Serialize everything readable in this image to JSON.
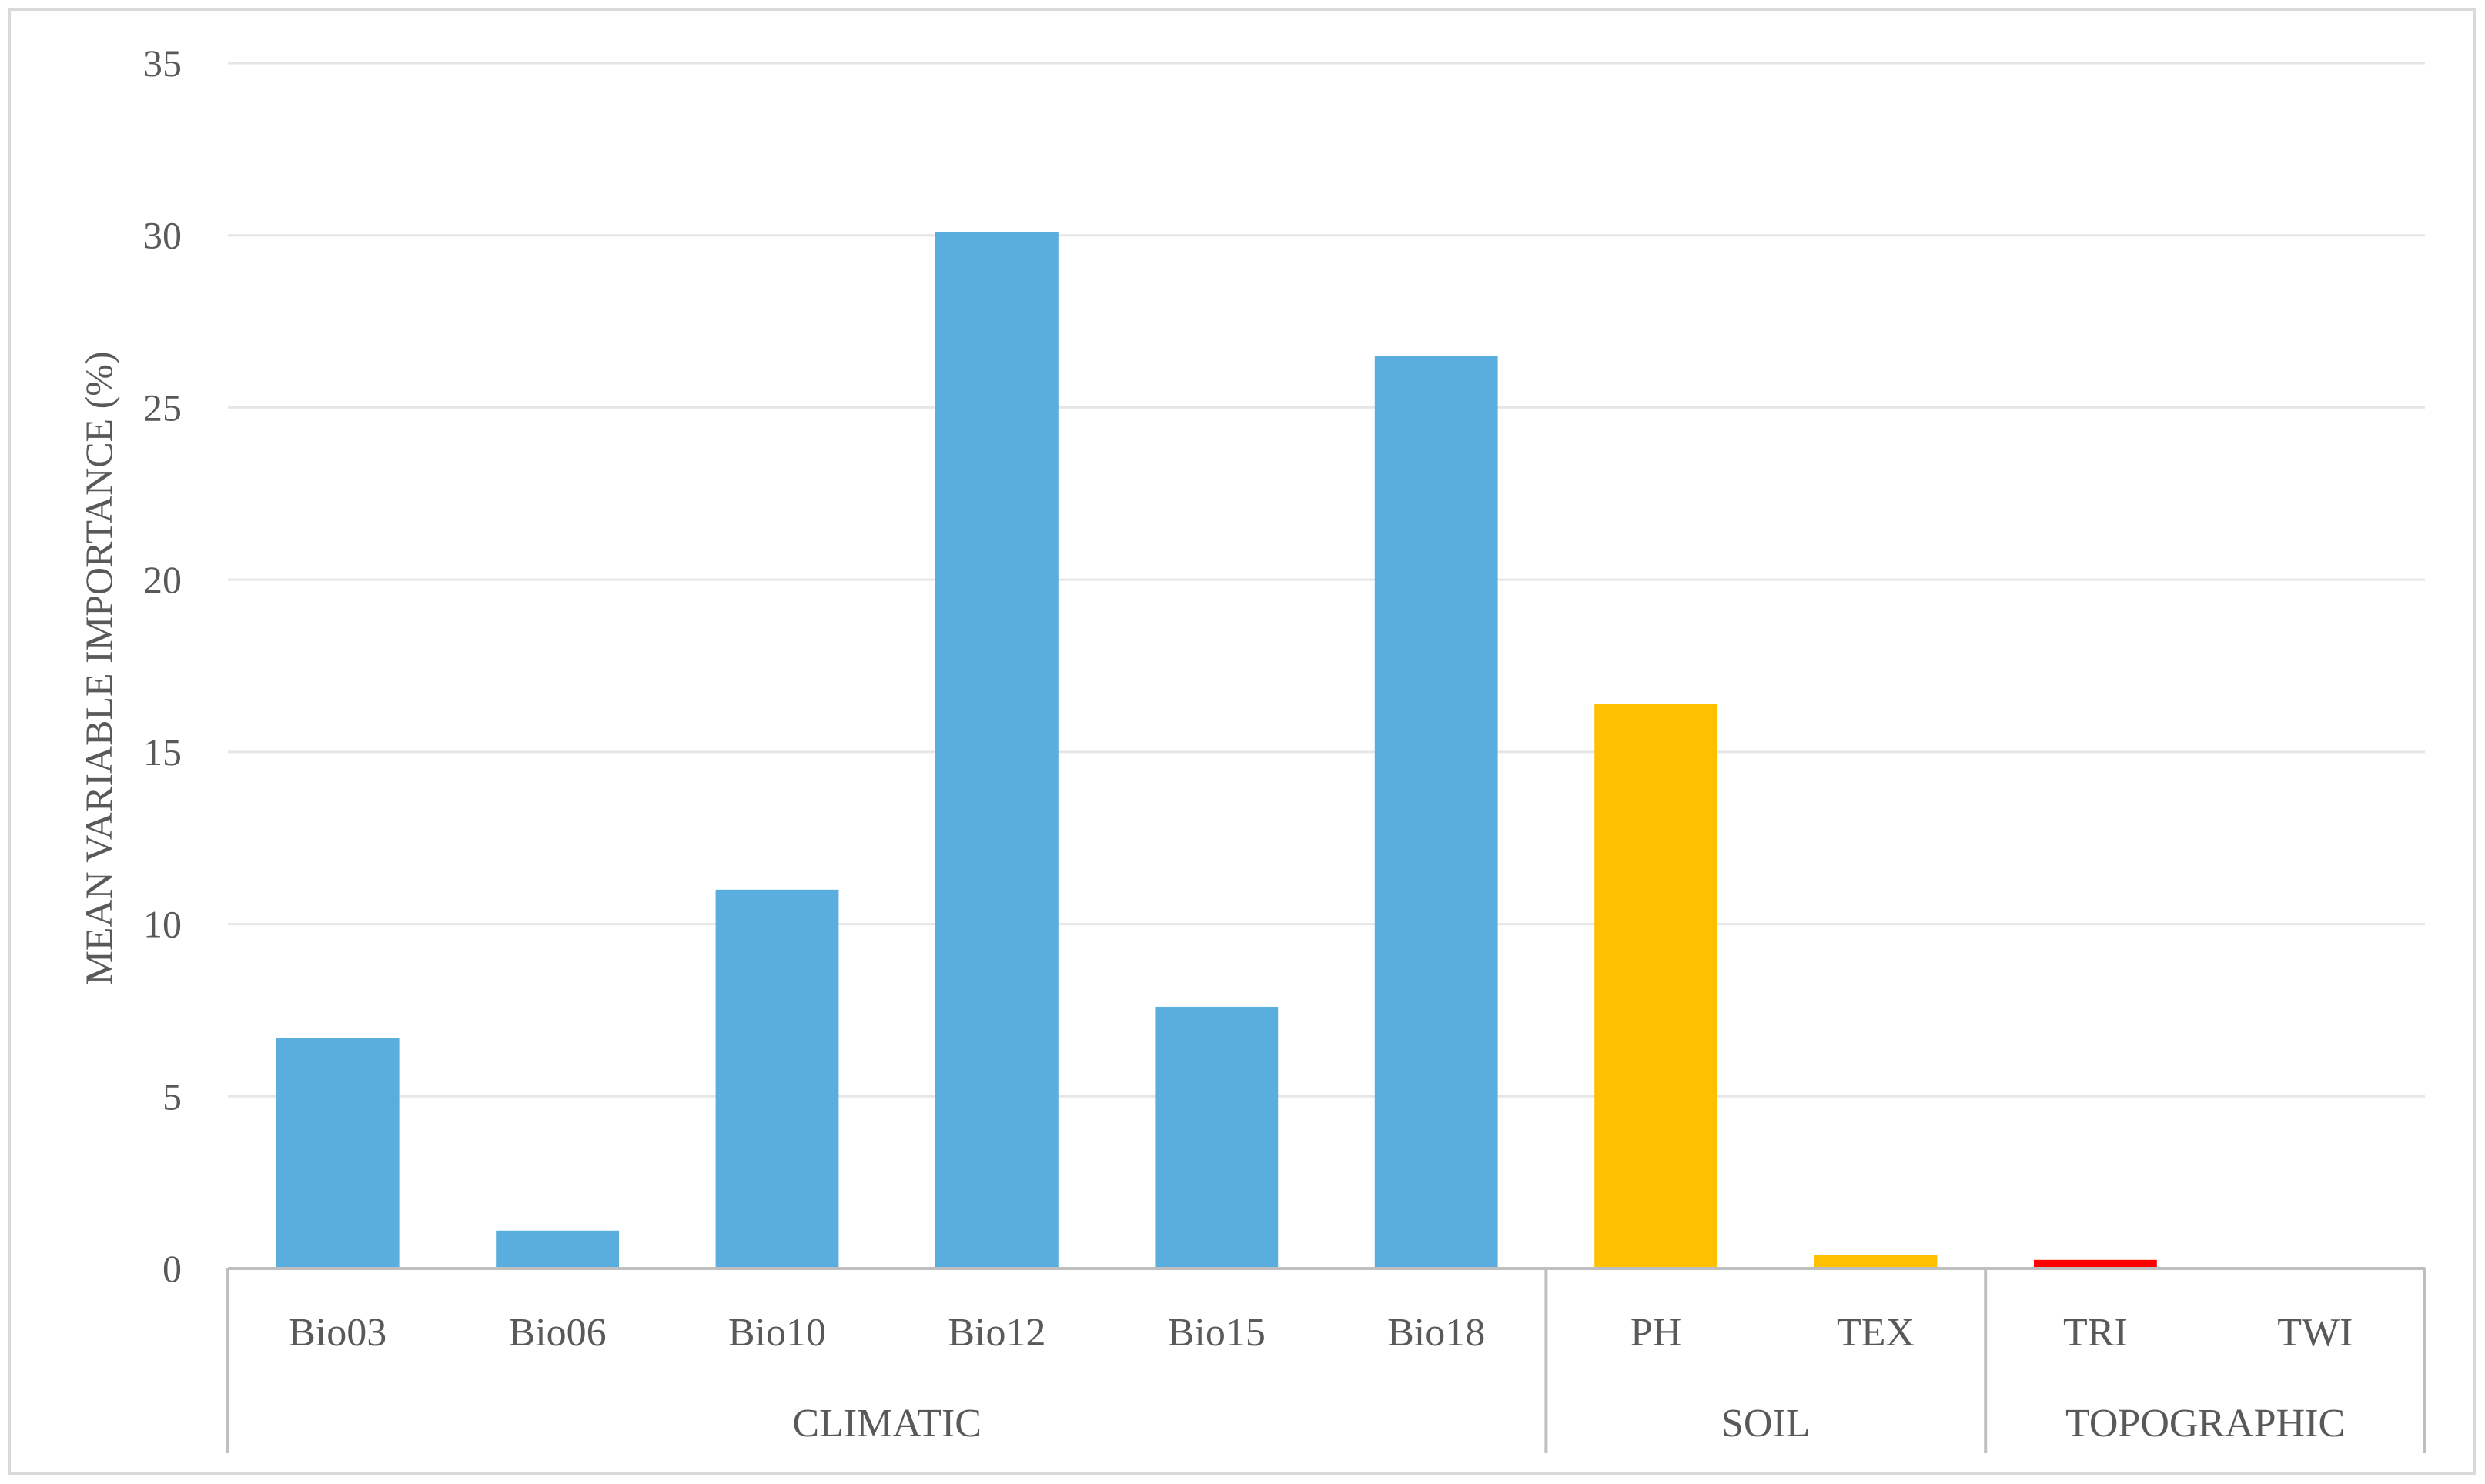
{
  "chart_data": {
    "type": "bar",
    "title": "",
    "xlabel": "",
    "ylabel": "MEAN VARIABLE IMPORTANCE (%)",
    "ylim": [
      0,
      35
    ],
    "yticks": [
      0,
      5,
      10,
      15,
      20,
      25,
      30,
      35
    ],
    "grid": true,
    "legend": "none",
    "categories": [
      "Bio03",
      "Bio06",
      "Bio10",
      "Bio12",
      "Bio15",
      "Bio18",
      "PH",
      "TEX",
      "TRI",
      "TWI"
    ],
    "values": [
      6.7,
      1.1,
      11.0,
      30.1,
      7.6,
      26.5,
      16.4,
      0.4,
      0.25,
      0
    ],
    "groups": [
      {
        "label": "CLIMATIC",
        "categories": [
          "Bio03",
          "Bio06",
          "Bio10",
          "Bio12",
          "Bio15",
          "Bio18"
        ],
        "color": "#5aaedd"
      },
      {
        "label": "SOIL",
        "categories": [
          "PH",
          "TEX"
        ],
        "color": "#ffc000"
      },
      {
        "label": "TOPOGRAPHIC",
        "categories": [
          "TRI",
          "TWI"
        ],
        "color": "#ff0000"
      }
    ]
  }
}
